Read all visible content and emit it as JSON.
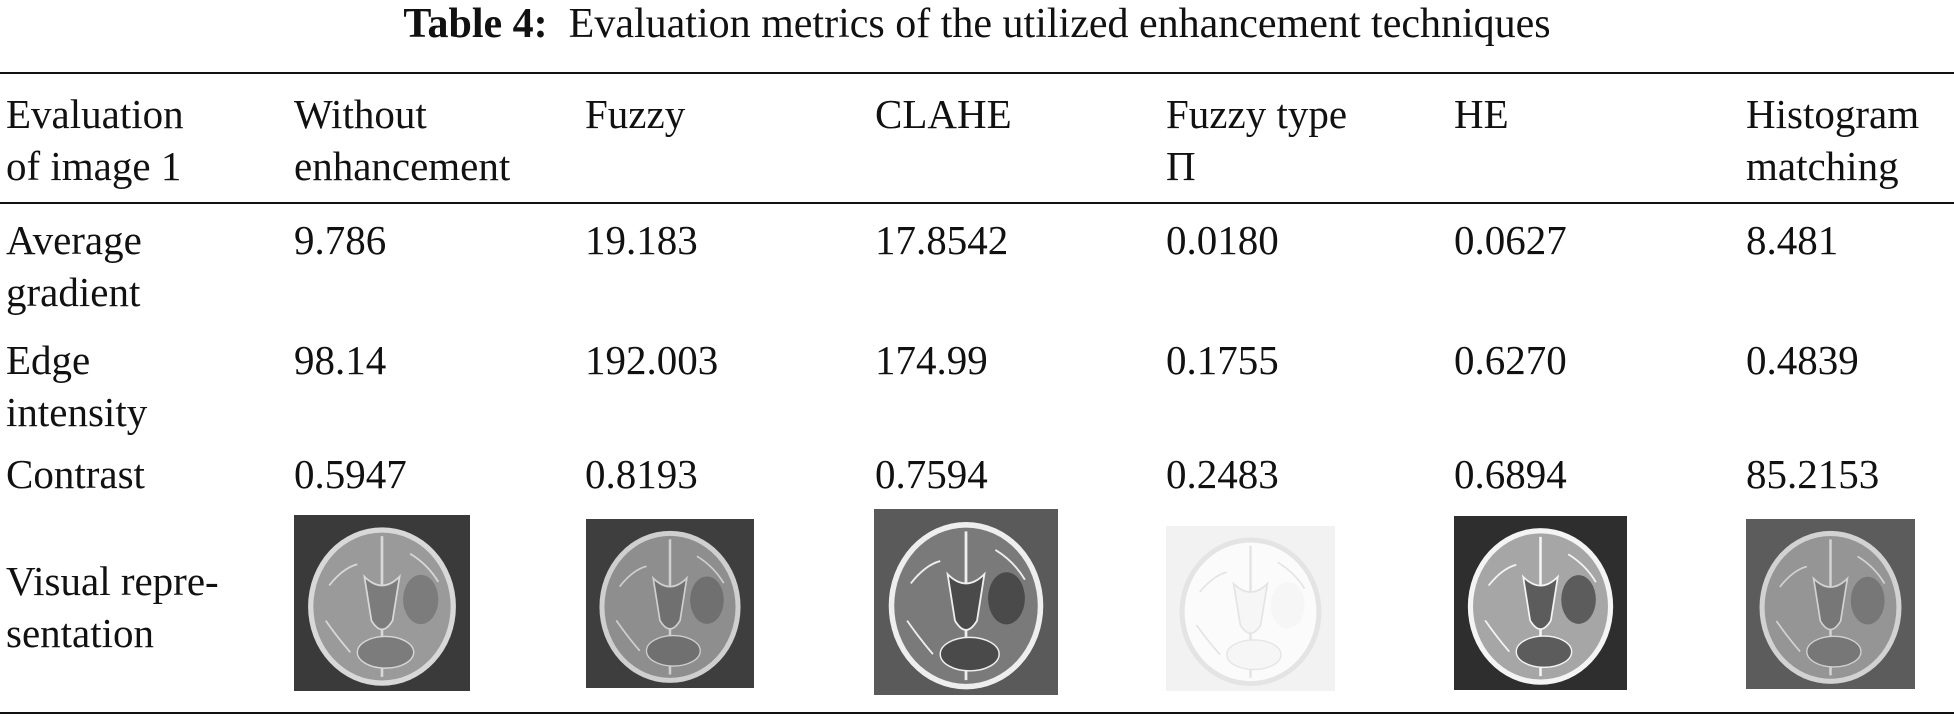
{
  "title": {
    "label": "Table 4:",
    "text": "Evaluation metrics of the utilized enhancement techniques"
  },
  "table": {
    "header": [
      "Evaluation\nof image 1",
      "Without\nenhancement",
      "Fuzzy",
      "CLAHE",
      "Fuzzy type\nΠ",
      "HE",
      "Histogram\nmatching"
    ],
    "rows": [
      [
        "Average\ngradient",
        "9.786",
        "19.183",
        "17.8542",
        "0.0180",
        "0.0627",
        "8.481"
      ],
      [
        "Edge\nintensity",
        "98.14",
        "192.003",
        "174.99",
        "0.1755",
        "0.6270",
        "0.4839"
      ],
      [
        "Contrast",
        "0.5947",
        "0.8193",
        "0.7594",
        "0.2483",
        "0.6894",
        "85.2153"
      ]
    ],
    "visual_label": "Visual repre-\nsentation"
  }
}
